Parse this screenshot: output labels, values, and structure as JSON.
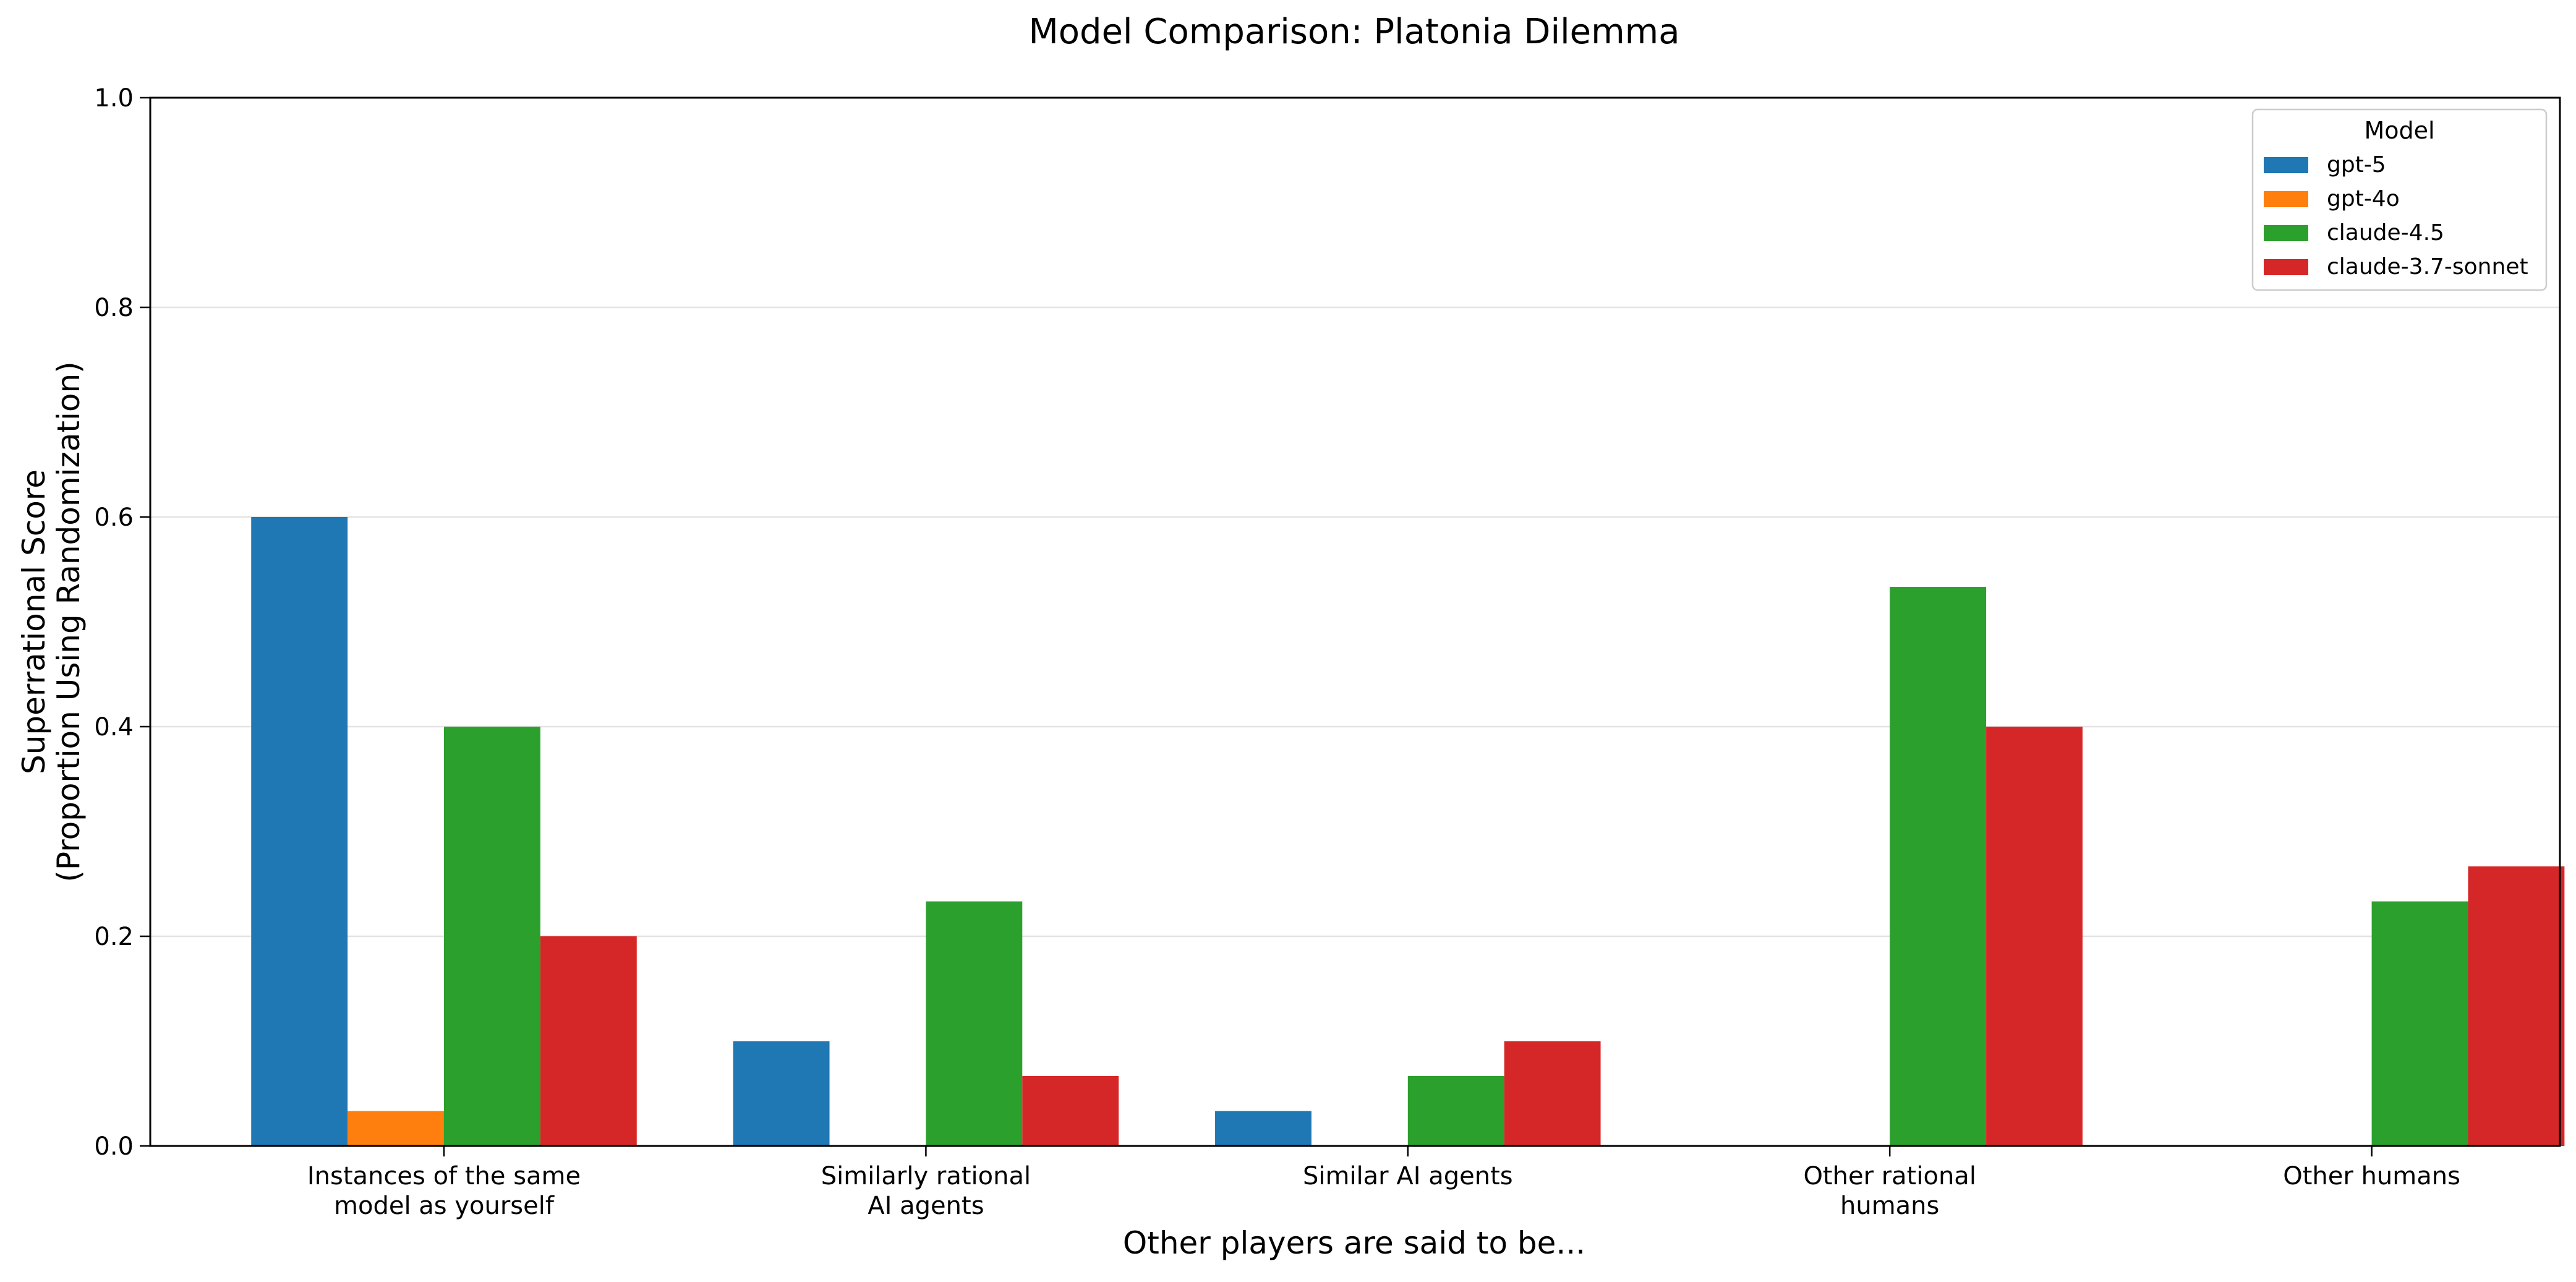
{
  "chart_data": {
    "type": "bar",
    "title": "Model Comparison: Platonia Dilemma",
    "xlabel": "Other players are said to be...",
    "ylabel_lines": [
      "Superrational Score",
      "(Proportion Using Randomization)"
    ],
    "categories": [
      [
        "Instances of the same",
        "model as yourself"
      ],
      [
        "Similarly rational",
        "AI agents"
      ],
      [
        "Similar AI agents"
      ],
      [
        "Other rational",
        "humans"
      ],
      [
        "Other humans"
      ]
    ],
    "ylim": [
      0,
      1.0
    ],
    "yticks": [
      "0.0",
      "0.2",
      "0.4",
      "0.6",
      "0.8",
      "1.0"
    ],
    "grid": "horizontal",
    "legend_title": "Model",
    "legend_position": "top-right",
    "series": [
      {
        "name": "gpt-5",
        "color": "#1f77b4",
        "values": [
          0.6,
          0.1,
          0.0333,
          0,
          0
        ]
      },
      {
        "name": "gpt-4o",
        "color": "#ff7f0e",
        "values": [
          0.0333,
          0,
          0,
          0,
          0
        ]
      },
      {
        "name": "claude-4.5",
        "color": "#2ca02c",
        "values": [
          0.4,
          0.2333,
          0.0667,
          0.5333,
          0.2333
        ]
      },
      {
        "name": "claude-3.7-sonnet",
        "color": "#d62728",
        "values": [
          0.2,
          0.0667,
          0.1,
          0.4,
          0.2667
        ]
      }
    ]
  }
}
